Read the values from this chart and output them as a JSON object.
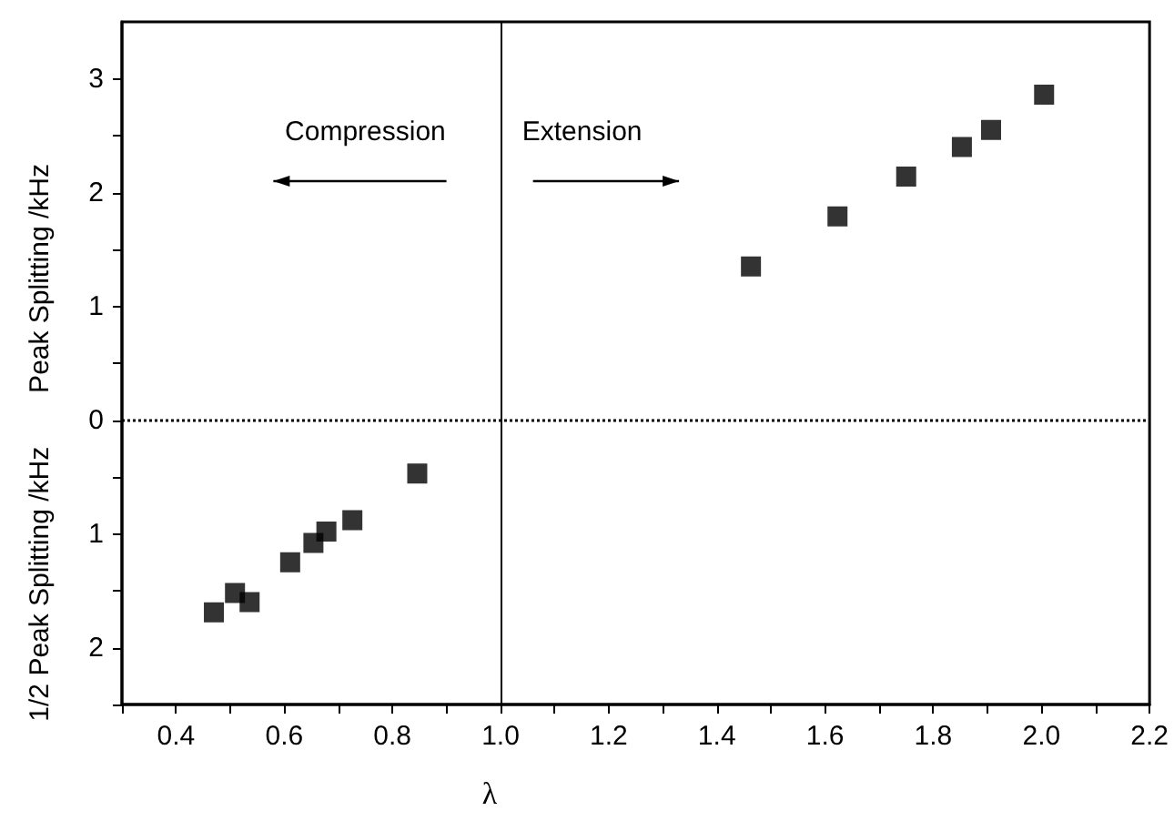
{
  "chart_data": {
    "type": "scatter",
    "xlabel": "λ",
    "ylabel": "Peak Splitting /kHz",
    "annotations": [
      "1/2 Peak Splitting /kHz",
      "Compression",
      "Extension"
    ],
    "x": [
      0.47,
      0.509,
      0.536,
      0.611,
      0.654,
      0.678,
      0.726,
      0.846,
      1.463,
      1.623,
      1.75,
      1.853,
      1.907,
      2.005
    ],
    "series": [
      {
        "color": "#000000",
        "values": [
          -1.69,
          -1.52,
          -1.6,
          -1.25,
          -1.08,
          -0.98,
          -0.88,
          -0.47,
          1.35,
          1.79,
          2.14,
          2.4,
          2.55,
          2.86
        ]
      }
    ],
    "xlim": [
      0.3,
      2.2
    ],
    "xticks": [
      {
        "value": 0.3,
        "label": null
      },
      0.4,
      {
        "value": 0.5,
        "label": null
      },
      {
        "value": 0.6,
        "label": "0.6"
      },
      {
        "value": 0.7,
        "label": null
      },
      {
        "value": 0.8,
        "label": "0.8"
      },
      {
        "value": 0.9,
        "label": null
      },
      {
        "value": 1.0,
        "label": "1.0"
      },
      {
        "value": 1.1,
        "label": null
      },
      {
        "value": 1.2,
        "label": "1.2"
      },
      {
        "value": 1.3,
        "label": null
      },
      {
        "value": 1.4,
        "label": "1.4"
      },
      {
        "value": 1.5,
        "label": null
      },
      {
        "value": 1.6,
        "label": "1.6"
      },
      {
        "value": 1.7,
        "label": null
      },
      {
        "value": 1.8,
        "label": "1.8"
      },
      {
        "value": 1.9,
        "label": null
      },
      {
        "value": 2.0,
        "label": "2.0"
      },
      {
        "value": 2.1,
        "label": null
      },
      {
        "value": 2.2,
        "label": "2.2"
      }
    ],
    "ylim": [
      -2.5,
      3.5
    ],
    "yticks": [
      {
        "value": -2.5,
        "label": null
      },
      {
        "value": -2,
        "label": "2"
      },
      {
        "value": -1.5,
        "label": null
      },
      {
        "value": -1,
        "label": "1"
      },
      {
        "value": -0.5,
        "label": null
      },
      0,
      {
        "value": 0.5,
        "label": null
      },
      1,
      {
        "value": 1.5,
        "label": null
      },
      2,
      {
        "value": 2.5,
        "label": null
      },
      3
    ],
    "ref_lines": [
      {
        "axis": "x",
        "value": 1.0,
        "line_style": "solid"
      },
      {
        "axis": "y",
        "value": 0,
        "line_style": "dotted"
      }
    ],
    "marker": "square",
    "grid": false
  }
}
